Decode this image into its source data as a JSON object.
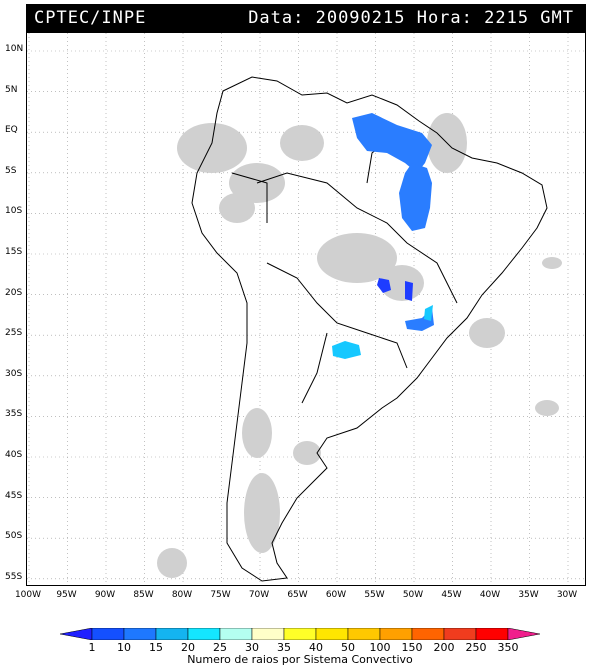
{
  "header": {
    "source": "CPTEC/INPE",
    "datetime": "Data: 20090215 Hora: 2215 GMT"
  },
  "map": {
    "latitude_labels": [
      "10N",
      "5N",
      "EQ",
      "5S",
      "10S",
      "15S",
      "20S",
      "25S",
      "30S",
      "35S",
      "40S",
      "45S",
      "50S",
      "55S"
    ],
    "longitude_labels": [
      "100W",
      "95W",
      "90W",
      "85W",
      "80W",
      "75W",
      "70W",
      "65W",
      "60W",
      "55W",
      "50W",
      "45W",
      "40W",
      "35W",
      "30W"
    ],
    "colors": {
      "land_outline": "#000000",
      "cloud_gray": "#d0d0d0",
      "deep_blue": "#1e3cff",
      "blue": "#2a7dff",
      "cyan": "#16c8ff"
    }
  },
  "colorbar": {
    "levels": [
      "1",
      "10",
      "15",
      "20",
      "25",
      "30",
      "35",
      "40",
      "50",
      "100",
      "150",
      "200",
      "250",
      "350"
    ],
    "colors": [
      "#2020ff",
      "#1450ff",
      "#1e78ff",
      "#14b4f0",
      "#14e6ff",
      "#b4fff0",
      "#ffffc8",
      "#ffff28",
      "#ffe600",
      "#ffc800",
      "#ffa000",
      "#ff6400",
      "#f03c1e",
      "#ff0000",
      "#f01e8c"
    ],
    "caption": "Numero de raios por Sistema Convectivo"
  }
}
